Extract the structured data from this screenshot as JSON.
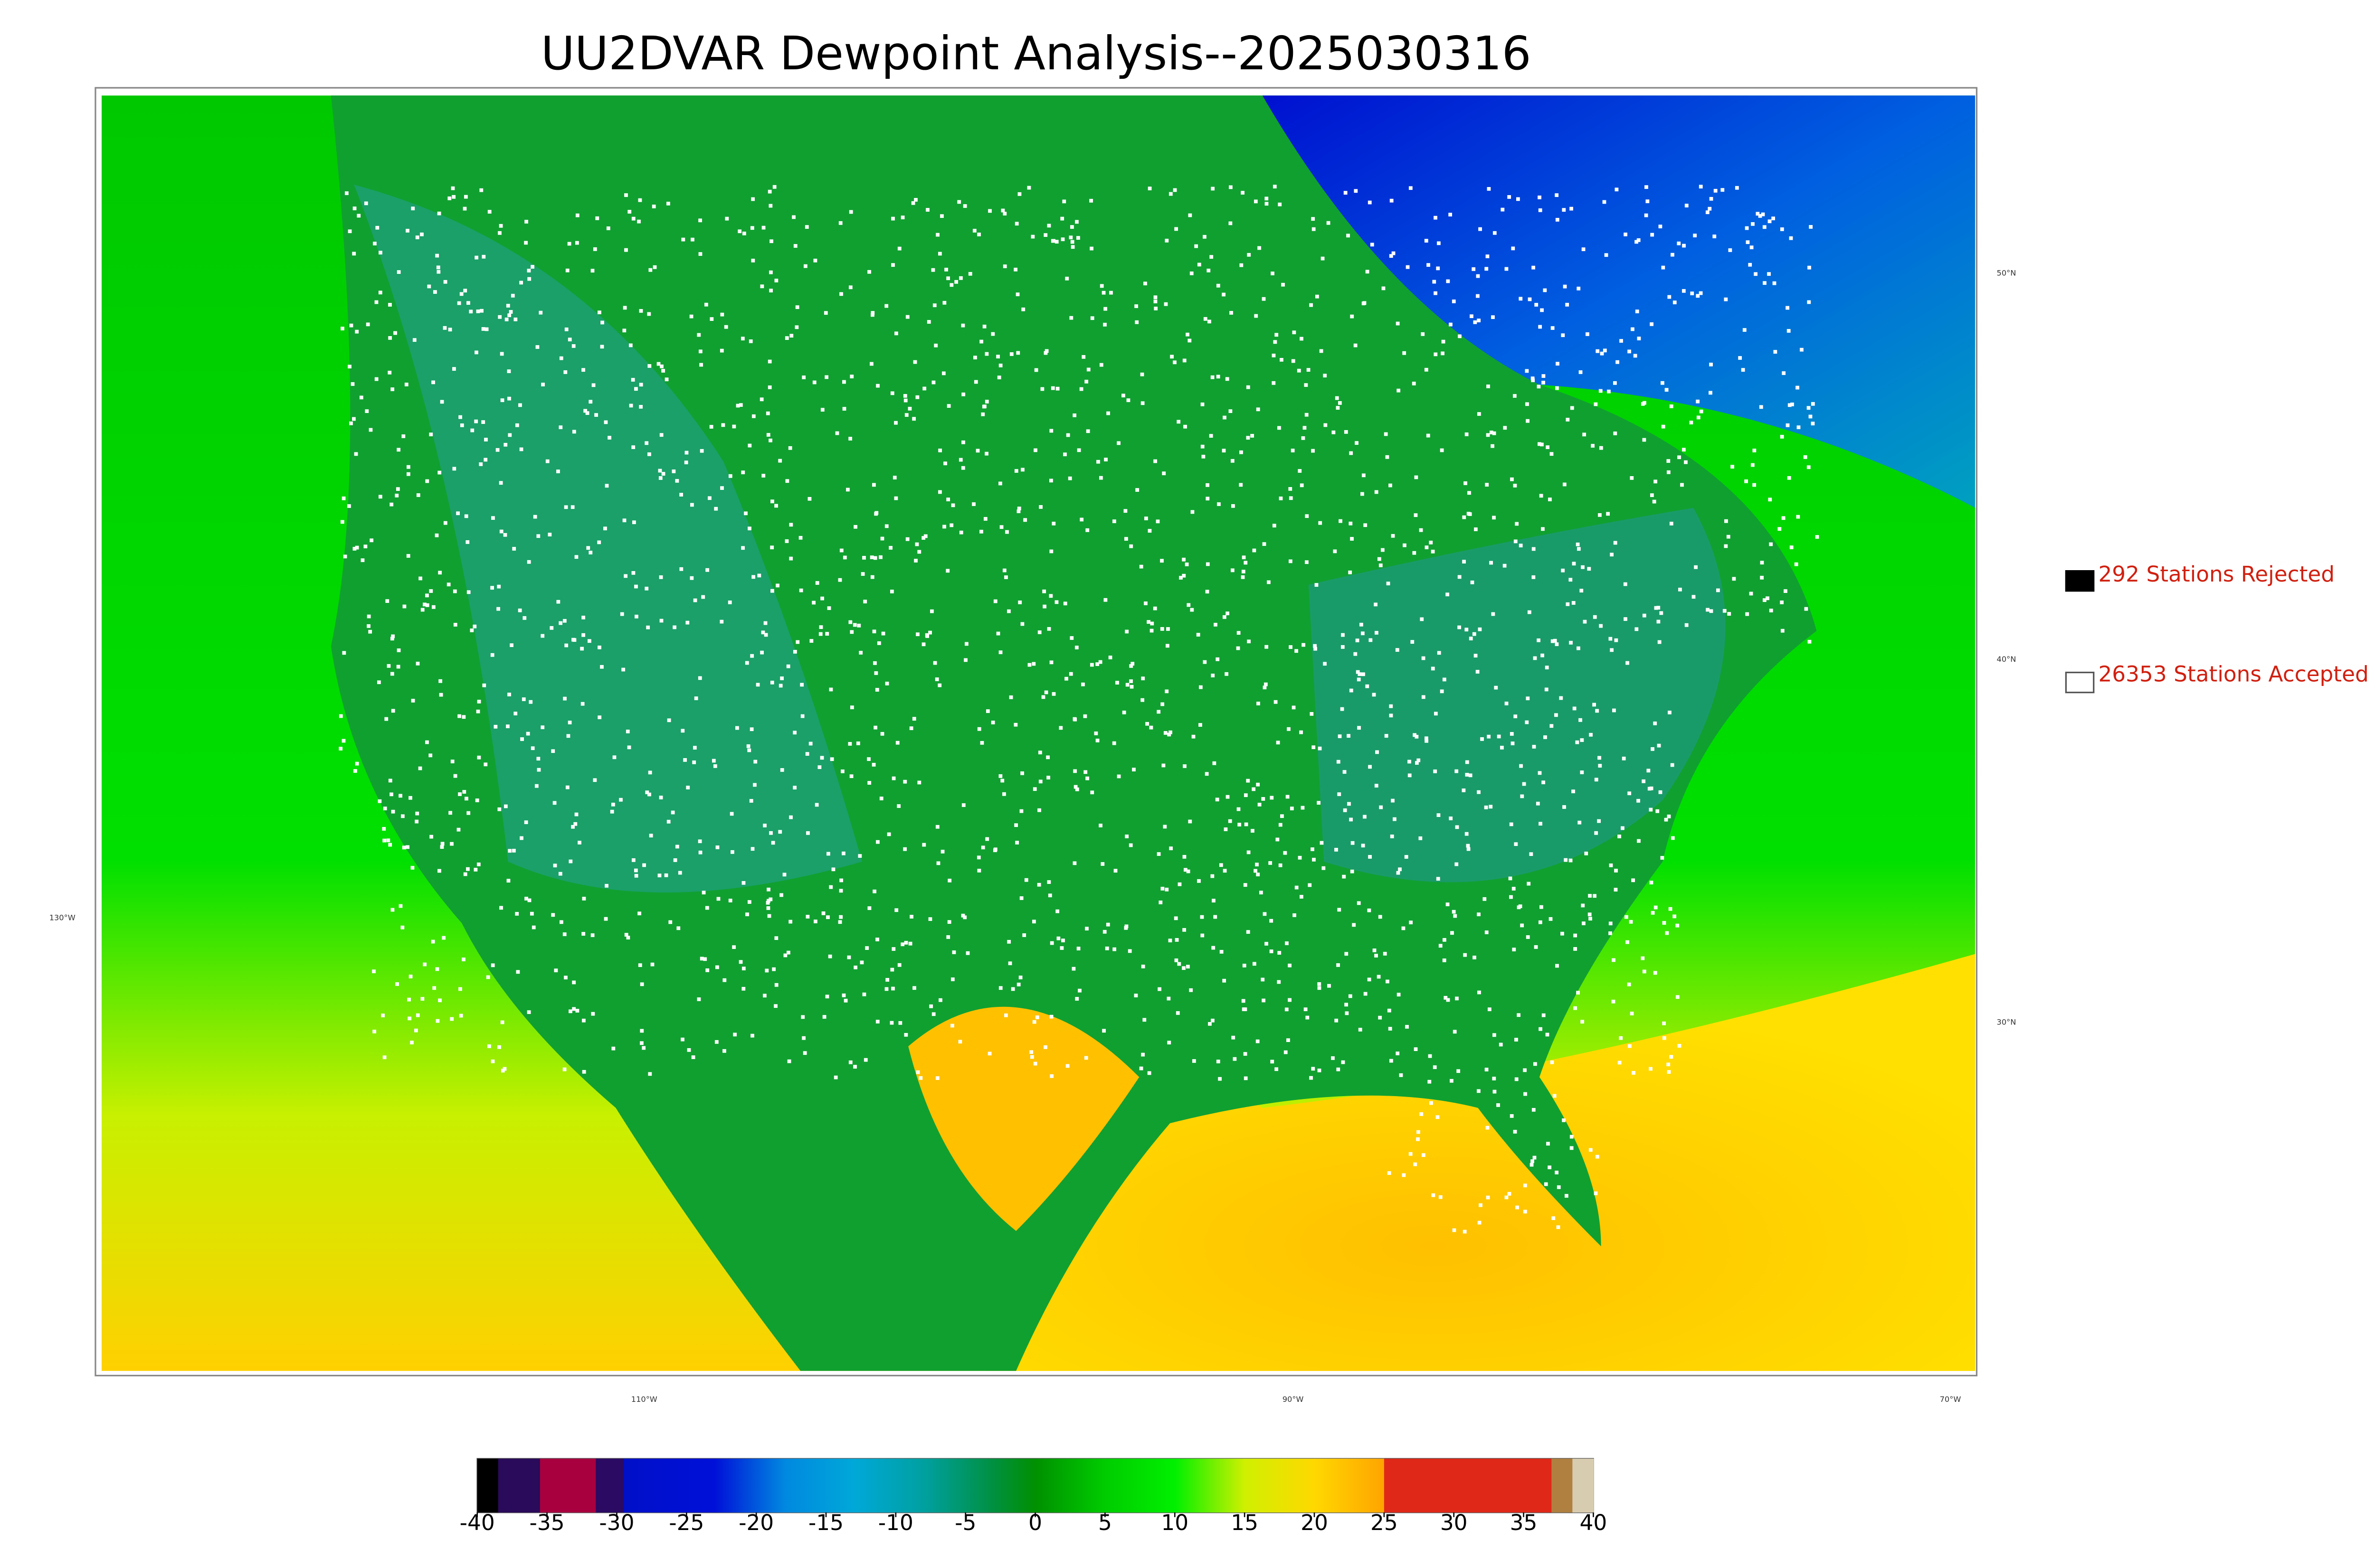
{
  "header": {
    "title": "UU2DVAR Dewpoint Analysis--2025030316"
  },
  "legend": {
    "items": [
      {
        "label": "292 Stations Rejected",
        "color": "#000000"
      },
      {
        "label": "26353 Stations Accepted",
        "color": "#ffffff"
      }
    ]
  },
  "map": {
    "lat_labels": [
      "50°N",
      "40°N",
      "30°N"
    ],
    "lon_labels": [
      "130°W",
      "110°W",
      "90°W",
      "70°W"
    ]
  },
  "colorbar": {
    "lim": [
      -40,
      40
    ],
    "ticks": [
      -40,
      -35,
      -30,
      -25,
      -20,
      -15,
      -10,
      -5,
      0,
      5,
      10,
      15,
      20,
      25,
      30,
      35,
      40
    ],
    "stops": [
      {
        "value": -40,
        "color": "#000000"
      },
      {
        "value": -38.5,
        "color": "#000000"
      },
      {
        "value": -38.5,
        "color": "#2a0a5a"
      },
      {
        "value": -35.5,
        "color": "#2a0a5a"
      },
      {
        "value": -35.5,
        "color": "#a8003e"
      },
      {
        "value": -31.5,
        "color": "#a8003e"
      },
      {
        "value": -31.5,
        "color": "#2a0a62"
      },
      {
        "value": -29.5,
        "color": "#2a0a62"
      },
      {
        "value": -29.5,
        "color": "#0010c8"
      },
      {
        "value": -23,
        "color": "#0010d8"
      },
      {
        "value": -18,
        "color": "#0088e0"
      },
      {
        "value": -13,
        "color": "#00a8d8"
      },
      {
        "value": -8,
        "color": "#00a0a0"
      },
      {
        "value": -3,
        "color": "#009040"
      },
      {
        "value": 0,
        "color": "#009000"
      },
      {
        "value": 5,
        "color": "#00cc00"
      },
      {
        "value": 10,
        "color": "#00f000"
      },
      {
        "value": 15,
        "color": "#d0f000"
      },
      {
        "value": 20,
        "color": "#ffd800"
      },
      {
        "value": 25,
        "color": "#ffa400"
      },
      {
        "value": 25,
        "color": "#e02818"
      },
      {
        "value": 37,
        "color": "#e02818"
      },
      {
        "value": 37,
        "color": "#b08040"
      },
      {
        "value": 38.5,
        "color": "#b08040"
      },
      {
        "value": 38.5,
        "color": "#d8ccb0"
      },
      {
        "value": 40,
        "color": "#d8ccb0"
      }
    ]
  }
}
